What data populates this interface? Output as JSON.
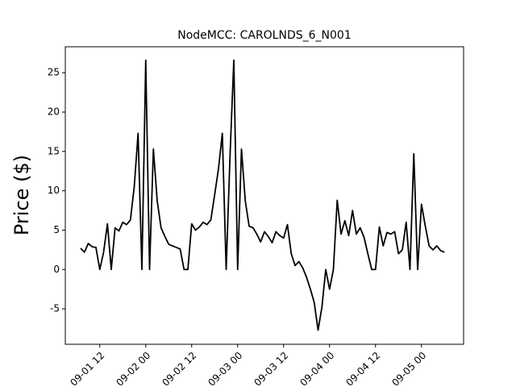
{
  "chart_data": {
    "type": "line",
    "title": "NodeMCC: CAROLNDS_6_N001",
    "y_label": "Price ($)",
    "x": [
      "09-01 07",
      "09-01 08",
      "09-01 09",
      "09-01 10",
      "09-01 11",
      "09-01 12",
      "09-01 13",
      "09-01 14",
      "09-01 15",
      "09-01 16",
      "09-01 17",
      "09-01 18",
      "09-01 19",
      "09-01 20",
      "09-01 21",
      "09-01 22",
      "09-01 23",
      "09-02 00",
      "09-02 01",
      "09-02 02",
      "09-02 03",
      "09-02 04",
      "09-02 05",
      "09-02 06",
      "09-02 07",
      "09-02 08",
      "09-02 09",
      "09-02 10",
      "09-02 11",
      "09-02 12",
      "09-02 13",
      "09-02 14",
      "09-02 15",
      "09-02 16",
      "09-02 17",
      "09-02 18",
      "09-02 19",
      "09-02 20",
      "09-02 21",
      "09-02 22",
      "09-02 23",
      "09-03 00",
      "09-03 01",
      "09-03 02",
      "09-03 03",
      "09-03 04",
      "09-03 05",
      "09-03 06",
      "09-03 07",
      "09-03 08",
      "09-03 09",
      "09-03 10",
      "09-03 11",
      "09-03 12",
      "09-03 13",
      "09-03 14",
      "09-03 15",
      "09-03 16",
      "09-03 17",
      "09-03 18",
      "09-03 19",
      "09-03 20",
      "09-03 21",
      "09-03 22",
      "09-03 23",
      "09-04 00",
      "09-04 01",
      "09-04 02",
      "09-04 03",
      "09-04 04",
      "09-04 05",
      "09-04 06",
      "09-04 07",
      "09-04 08",
      "09-04 09",
      "09-04 10",
      "09-04 11",
      "09-04 12",
      "09-04 13",
      "09-04 14",
      "09-04 15",
      "09-04 16",
      "09-04 17",
      "09-04 18",
      "09-04 19",
      "09-04 20",
      "09-04 21",
      "09-04 22",
      "09-04 23",
      "09-05 00",
      "09-05 01",
      "09-05 02",
      "09-05 03",
      "09-05 04",
      "09-05 05",
      "09-05 06"
    ],
    "series": [
      {
        "name": "CAROLNDS_6_N001",
        "color": "#000000",
        "values": [
          2.7,
          2.2,
          3.3,
          2.9,
          2.8,
          0,
          2.2,
          5.8,
          0,
          5.3,
          4.9,
          6.0,
          5.7,
          6.3,
          10.5,
          17.3,
          0,
          26.6,
          0,
          15.3,
          8.7,
          5.3,
          4.2,
          3.2,
          3.0,
          2.8,
          2.6,
          0,
          0,
          5.8,
          5.0,
          5.4,
          6.0,
          5.7,
          6.3,
          9.5,
          12.8,
          17.3,
          0,
          14.3,
          26.6,
          0,
          15.3,
          8.7,
          5.5,
          5.3,
          4.5,
          3.5,
          4.8,
          4.2,
          3.4,
          4.8,
          4.3,
          4.0,
          5.7,
          2.0,
          0.5,
          1.0,
          0.2,
          -1.0,
          -2.5,
          -4.2,
          -7.7,
          -4.8,
          0,
          -2.5,
          0,
          8.8,
          4.5,
          6.2,
          4.3,
          7.5,
          4.5,
          5.3,
          4.1,
          2.0,
          0,
          0,
          5.4,
          3.0,
          4.7,
          4.5,
          4.8,
          2.0,
          2.5,
          6.0,
          0,
          14.7,
          0,
          8.3,
          5.5,
          3.0,
          2.5,
          3.0,
          2.4,
          2.2
        ]
      }
    ],
    "xlim": [
      "09-01 03",
      "09-05 11"
    ],
    "xticks": [
      "09-01 12",
      "09-02 00",
      "09-02 12",
      "09-03 00",
      "09-03 12",
      "09-04 00",
      "09-04 12",
      "09-05 00"
    ],
    "ylim": [
      -9.5,
      28.3
    ],
    "yticks": [
      -5,
      0,
      5,
      10,
      15,
      20,
      25
    ],
    "grid": false
  }
}
